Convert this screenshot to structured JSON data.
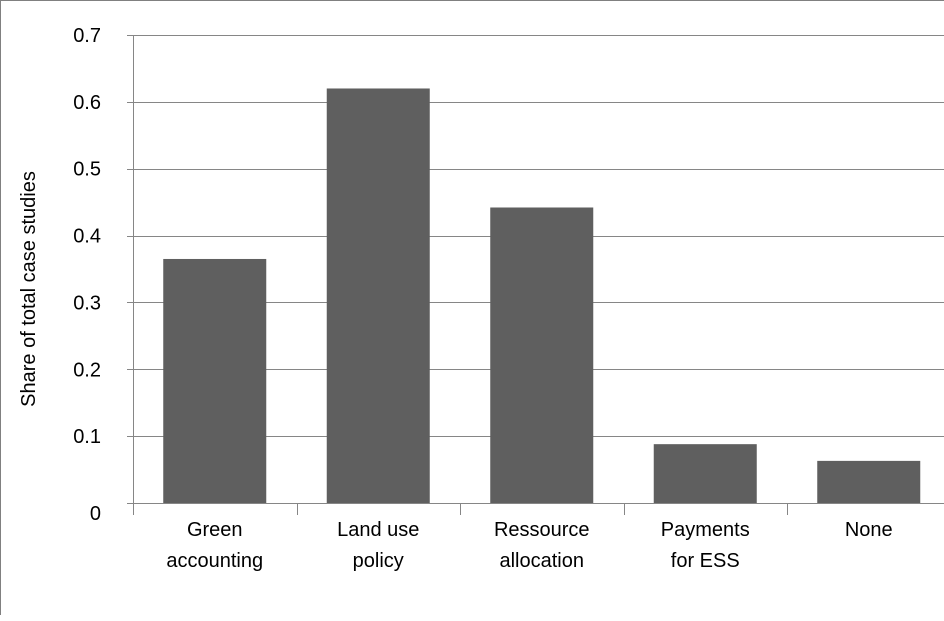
{
  "chart_data": {
    "type": "bar",
    "categories": [
      [
        "Green",
        "accounting"
      ],
      [
        "Land use",
        "policy"
      ],
      [
        "Ressource",
        "allocation"
      ],
      [
        "Payments",
        "for ESS"
      ],
      [
        "None"
      ]
    ],
    "values": [
      0.365,
      0.62,
      0.442,
      0.088,
      0.063
    ],
    "ylabel": "Share of total case  studies",
    "ylim": [
      0,
      0.7
    ],
    "yticks": [
      "0",
      "0.1",
      "0.2",
      "0.3",
      "0.4",
      "0.5",
      "0.6",
      "0.7"
    ],
    "grid": true,
    "bar_color": "#5f5f5f",
    "grid_color": "#868686"
  }
}
